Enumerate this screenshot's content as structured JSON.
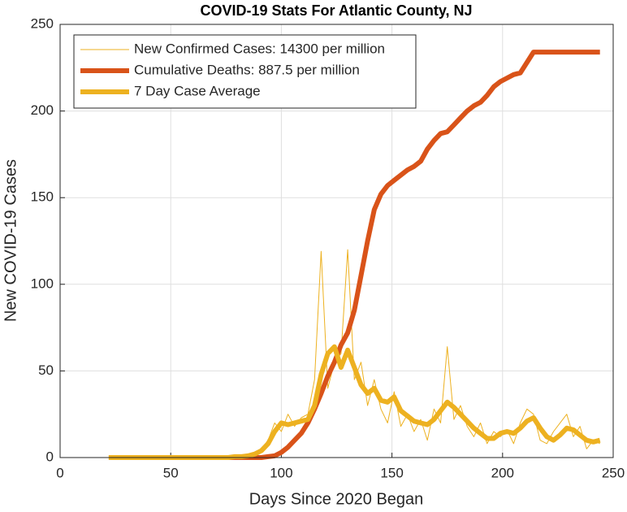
{
  "chart_data": {
    "type": "line",
    "title": "COVID-19 Stats For Atlantic County, NJ",
    "xlabel": "Days Since 2020 Began",
    "ylabel": "New COVID-19 Cases",
    "x": [
      22,
      25,
      28,
      31,
      34,
      37,
      40,
      43,
      46,
      49,
      52,
      55,
      58,
      61,
      64,
      67,
      70,
      73,
      76,
      79,
      82,
      85,
      88,
      91,
      94,
      97,
      100,
      103,
      106,
      109,
      112,
      115,
      118,
      121,
      124,
      127,
      130,
      133,
      136,
      139,
      142,
      145,
      148,
      151,
      154,
      157,
      160,
      163,
      166,
      169,
      172,
      175,
      178,
      181,
      184,
      187,
      190,
      193,
      196,
      199,
      202,
      205,
      208,
      211,
      214,
      217,
      220,
      223,
      226,
      229,
      232,
      235,
      238,
      241,
      244
    ],
    "series": [
      {
        "name": "New Confirmed Cases: 14300 per million",
        "color": "#EDB120",
        "width": 1,
        "values": [
          0,
          0,
          0,
          0,
          0,
          0,
          0,
          0,
          0,
          0,
          0,
          0,
          0,
          0,
          0,
          0,
          0,
          0,
          0,
          0,
          0,
          1,
          1,
          5,
          10,
          20,
          15,
          25,
          18,
          23,
          25,
          45,
          119,
          40,
          55,
          60,
          120,
          45,
          55,
          30,
          45,
          28,
          20,
          38,
          18,
          25,
          15,
          22,
          10,
          28,
          20,
          64,
          22,
          30,
          18,
          12,
          20,
          8,
          15,
          12,
          16,
          8,
          20,
          28,
          25,
          10,
          8,
          15,
          20,
          25,
          12,
          18,
          5,
          10,
          8
        ]
      },
      {
        "name": "Cumulative Deaths: 887.5 per million",
        "color": "#D95319",
        "width": 6,
        "values": [
          0,
          0,
          0,
          0,
          0,
          0,
          0,
          0,
          0,
          0,
          0,
          0,
          0,
          0,
          0,
          0,
          0,
          0,
          0,
          0,
          0,
          0,
          0,
          0,
          0.5,
          1,
          3,
          6,
          10,
          14,
          20,
          28,
          37,
          47,
          55,
          65,
          72,
          85,
          105,
          125,
          143,
          152,
          157,
          160,
          163,
          166,
          168,
          171,
          178,
          183,
          187,
          188,
          192,
          196,
          200,
          203,
          205,
          209,
          214,
          217,
          219,
          221,
          222,
          228,
          234,
          234,
          234,
          234,
          234,
          234,
          234,
          234,
          234,
          234,
          234
        ]
      },
      {
        "name": "7 Day Case Average",
        "color": "#EDB120",
        "width": 6,
        "values": [
          0,
          0,
          0,
          0,
          0,
          0,
          0,
          0,
          0,
          0,
          0,
          0,
          0,
          0,
          0,
          0,
          0,
          0,
          0,
          0.5,
          0.5,
          1,
          2,
          4,
          8,
          15,
          20,
          19,
          20,
          21,
          22,
          30,
          48,
          60,
          64,
          52,
          62,
          52,
          42,
          37,
          40,
          33,
          32,
          35,
          27,
          24,
          21,
          20,
          19,
          22,
          27,
          32,
          29,
          25,
          21,
          17,
          14,
          11,
          11,
          14,
          15,
          14,
          17,
          21,
          23,
          17,
          12,
          10,
          13,
          17,
          16,
          13,
          10,
          9,
          10
        ]
      }
    ],
    "xlim": [
      0,
      250
    ],
    "xticks": [
      0,
      50,
      100,
      150,
      200,
      250
    ],
    "ylim": [
      0,
      250
    ],
    "yticks": [
      0,
      50,
      100,
      150,
      200,
      250
    ],
    "grid": true,
    "legend": "upper left"
  }
}
